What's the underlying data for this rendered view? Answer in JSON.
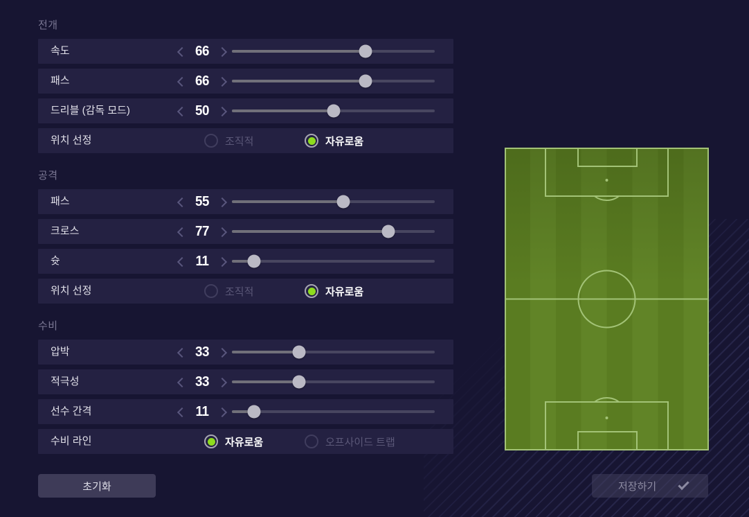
{
  "sections": [
    {
      "title": "전개",
      "rows": [
        {
          "type": "slider",
          "label": "속도",
          "value": 66
        },
        {
          "type": "slider",
          "label": "패스",
          "value": 66
        },
        {
          "type": "slider",
          "label": "드리블 (감독 모드)",
          "value": 50
        },
        {
          "type": "radio",
          "label": "위치 선정",
          "options": [
            {
              "label": "조직적",
              "selected": false
            },
            {
              "label": "자유로움",
              "selected": true
            }
          ]
        }
      ]
    },
    {
      "title": "공격",
      "rows": [
        {
          "type": "slider",
          "label": "패스",
          "value": 55
        },
        {
          "type": "slider",
          "label": "크로스",
          "value": 77
        },
        {
          "type": "slider",
          "label": "슛",
          "value": 11
        },
        {
          "type": "radio",
          "label": "위치 선정",
          "options": [
            {
              "label": "조직적",
              "selected": false
            },
            {
              "label": "자유로움",
              "selected": true
            }
          ]
        }
      ]
    },
    {
      "title": "수비",
      "rows": [
        {
          "type": "slider",
          "label": "압박",
          "value": 33
        },
        {
          "type": "slider",
          "label": "적극성",
          "value": 33
        },
        {
          "type": "slider",
          "label": "선수 간격",
          "value": 11
        },
        {
          "type": "radio",
          "label": "수비 라인",
          "options": [
            {
              "label": "자유로움",
              "selected": true
            },
            {
              "label": "오프사이드 트랩",
              "selected": false
            }
          ]
        }
      ]
    }
  ],
  "slider": {
    "min": 0,
    "max": 100
  },
  "buttons": {
    "reset": "초기화",
    "save": "저장하기",
    "save_icon": "check-icon"
  },
  "colors": {
    "background": "#171532",
    "row_background": "#242142",
    "radio_selected": "#8edc1e",
    "slider_fill": "#71707a",
    "slider_track": "#484660",
    "slider_knob": "#bab9c4",
    "pitch_green": "#5a7c21",
    "pitch_green_alt": "#618427",
    "pitch_line": "#a3c377"
  }
}
